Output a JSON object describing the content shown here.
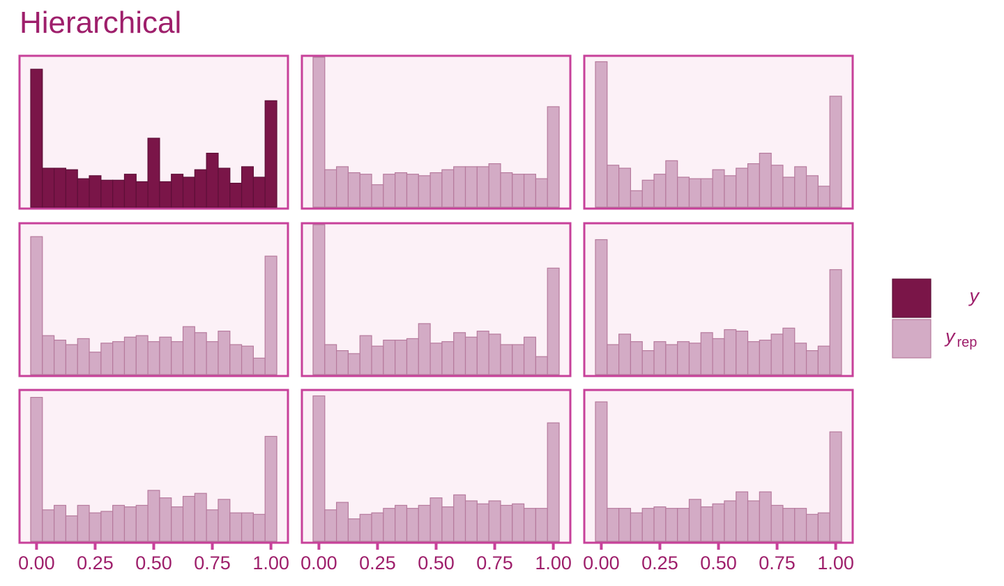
{
  "title": "Hierarchical",
  "colors": {
    "panel_bg": "#fcf1f7",
    "panel_border": "#c7419a",
    "y_fill": "#7a1548",
    "y_stroke": "#5e0f38",
    "yrep_fill": "#d3abc5",
    "yrep_stroke": "#b67a9d",
    "text": "#9e1f6b"
  },
  "legend": {
    "items": [
      {
        "key": "y",
        "label": "y",
        "subscript": ""
      },
      {
        "key": "yrep",
        "label": "y",
        "subscript": "rep"
      }
    ]
  },
  "chart_data": {
    "type": "bar",
    "layout": "3x3 facet grid of histograms",
    "bins": 21,
    "xlim": [
      0,
      1
    ],
    "x_ticks": [
      "0.00",
      "0.25",
      "0.50",
      "0.75",
      "1.00"
    ],
    "ylim": [
      0,
      100
    ],
    "panels": [
      {
        "series": "y",
        "values": [
          92,
          26,
          26,
          25,
          19,
          21,
          18,
          18,
          22,
          17,
          46,
          17,
          22,
          20,
          25,
          36,
          26,
          16,
          27,
          20,
          71
        ]
      },
      {
        "series": "yrep",
        "values": [
          100,
          25,
          27,
          23,
          22,
          15,
          22,
          23,
          22,
          21,
          23,
          25,
          27,
          27,
          27,
          29,
          23,
          22,
          22,
          19,
          67
        ]
      },
      {
        "series": "yrep",
        "values": [
          97,
          28,
          26,
          11,
          18,
          22,
          31,
          20,
          19,
          19,
          25,
          21,
          26,
          29,
          36,
          28,
          20,
          27,
          21,
          14,
          74
        ]
      },
      {
        "series": "yrep",
        "values": [
          92,
          26,
          23,
          20,
          24,
          15,
          21,
          22,
          25,
          26,
          22,
          25,
          22,
          32,
          28,
          22,
          29,
          20,
          19,
          11,
          79
        ]
      },
      {
        "series": "yrep",
        "values": [
          105,
          20,
          16,
          14,
          26,
          19,
          23,
          23,
          24,
          34,
          21,
          22,
          28,
          25,
          29,
          27,
          20,
          20,
          25,
          12,
          71
        ]
      },
      {
        "series": "yrep",
        "values": [
          90,
          20,
          27,
          22,
          16,
          22,
          20,
          22,
          21,
          28,
          24,
          30,
          29,
          22,
          23,
          27,
          31,
          21,
          16,
          19,
          70
        ]
      },
      {
        "series": "yrep",
        "values": [
          96,
          21,
          24,
          17,
          24,
          19,
          20,
          24,
          23,
          24,
          34,
          29,
          23,
          30,
          32,
          21,
          28,
          19,
          19,
          18,
          70
        ]
      },
      {
        "series": "yrep",
        "values": [
          97,
          21,
          26,
          15,
          18,
          19,
          22,
          24,
          22,
          24,
          29,
          23,
          31,
          27,
          25,
          27,
          24,
          25,
          22,
          22,
          79
        ]
      },
      {
        "series": "yrep",
        "values": [
          93,
          22,
          22,
          19,
          22,
          23,
          22,
          22,
          28,
          23,
          25,
          27,
          33,
          27,
          33,
          24,
          22,
          22,
          18,
          19,
          73
        ]
      }
    ]
  }
}
